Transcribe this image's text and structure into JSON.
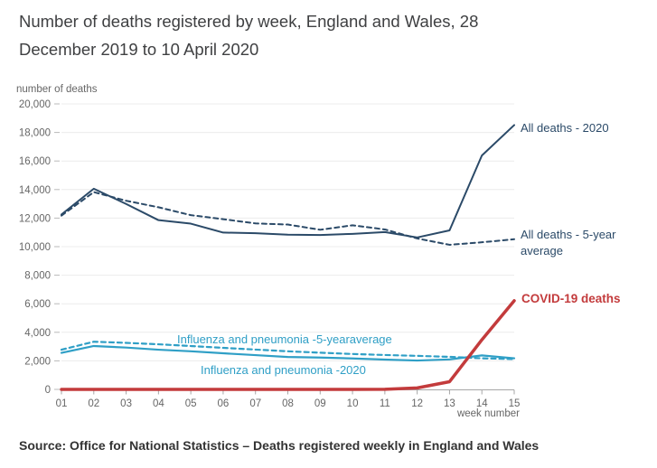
{
  "header": {
    "title_line1": "Number of deaths registered by week, England and Wales, 28",
    "title_line2": "December 2019 to 10 April 2020"
  },
  "source": {
    "text": "Source: Office for National Statistics – Deaths registered weekly in England and Wales"
  },
  "colors": {
    "navy": "#2B4A68",
    "light_blue": "#2F9FC6",
    "red": "#C33B3C",
    "title_text": "#3F4042",
    "axis_text": "#666666",
    "gridline": "#ECECEC",
    "axis_line": "#A6A6A6"
  },
  "chart_data": {
    "type": "line",
    "title": "Number of deaths registered by week, England and Wales, 28 December 2019 to 10 April 2020",
    "xlabel": "week number",
    "ylabel": "number of deaths",
    "x": [
      1,
      2,
      3,
      4,
      5,
      6,
      7,
      8,
      9,
      10,
      11,
      12,
      13,
      14,
      15
    ],
    "x_tick_labels": [
      "01",
      "02",
      "03",
      "04",
      "05",
      "06",
      "07",
      "08",
      "09",
      "10",
      "11",
      "12",
      "13",
      "14",
      "15"
    ],
    "ylim": [
      0,
      20000
    ],
    "grid": true,
    "legend_position": "inline-annotations",
    "y_ticks": [
      {
        "value": 0,
        "label": "0"
      },
      {
        "value": 2000,
        "label": "2,000"
      },
      {
        "value": 4000,
        "label": "4,000"
      },
      {
        "value": 6000,
        "label": "6,000"
      },
      {
        "value": 8000,
        "label": "8,000"
      },
      {
        "value": 10000,
        "label": "10,000"
      },
      {
        "value": 12000,
        "label": "12,000"
      },
      {
        "value": 14000,
        "label": "14,000"
      },
      {
        "value": 16000,
        "label": "16,000"
      },
      {
        "value": 18000,
        "label": "18,000"
      },
      {
        "value": 20000,
        "label": "20,000"
      }
    ],
    "series": [
      {
        "name": "All deaths - 2020",
        "color": "#2B4A68",
        "style": "solid",
        "width": 2,
        "values": [
          12254,
          14058,
          12990,
          11856,
          11612,
          10986,
          10944,
          10841,
          10816,
          10895,
          11019,
          10645,
          11141,
          16387,
          18516
        ]
      },
      {
        "name": "All deaths - 5-year average",
        "color": "#2B4A68",
        "style": "dashed",
        "width": 2,
        "values": [
          12175,
          13822,
          13216,
          12760,
          12206,
          11925,
          11627,
          11548,
          11183,
          11498,
          11205,
          10573,
          10130,
          10305,
          10520
        ]
      },
      {
        "name": "Influenza and pneumonia -5-yearaverage",
        "color": "#2F9FC6",
        "style": "dashed",
        "width": 2.2,
        "values": [
          2780,
          3340,
          3260,
          3160,
          3040,
          2910,
          2790,
          2670,
          2570,
          2480,
          2410,
          2350,
          2280,
          2180,
          2120
        ]
      },
      {
        "name": "Influenza and pneumonia -2020",
        "color": "#2F9FC6",
        "style": "solid",
        "width": 2.2,
        "values": [
          2560,
          3040,
          2930,
          2780,
          2670,
          2530,
          2400,
          2270,
          2230,
          2170,
          2090,
          2020,
          2100,
          2380,
          2180
        ]
      },
      {
        "name": "COVID-19 deaths",
        "color": "#C33B3C",
        "style": "solid",
        "width": 3.5,
        "values": [
          0,
          0,
          0,
          0,
          0,
          0,
          0,
          0,
          0,
          0,
          5,
          103,
          539,
          3475,
          6213
        ]
      }
    ]
  }
}
